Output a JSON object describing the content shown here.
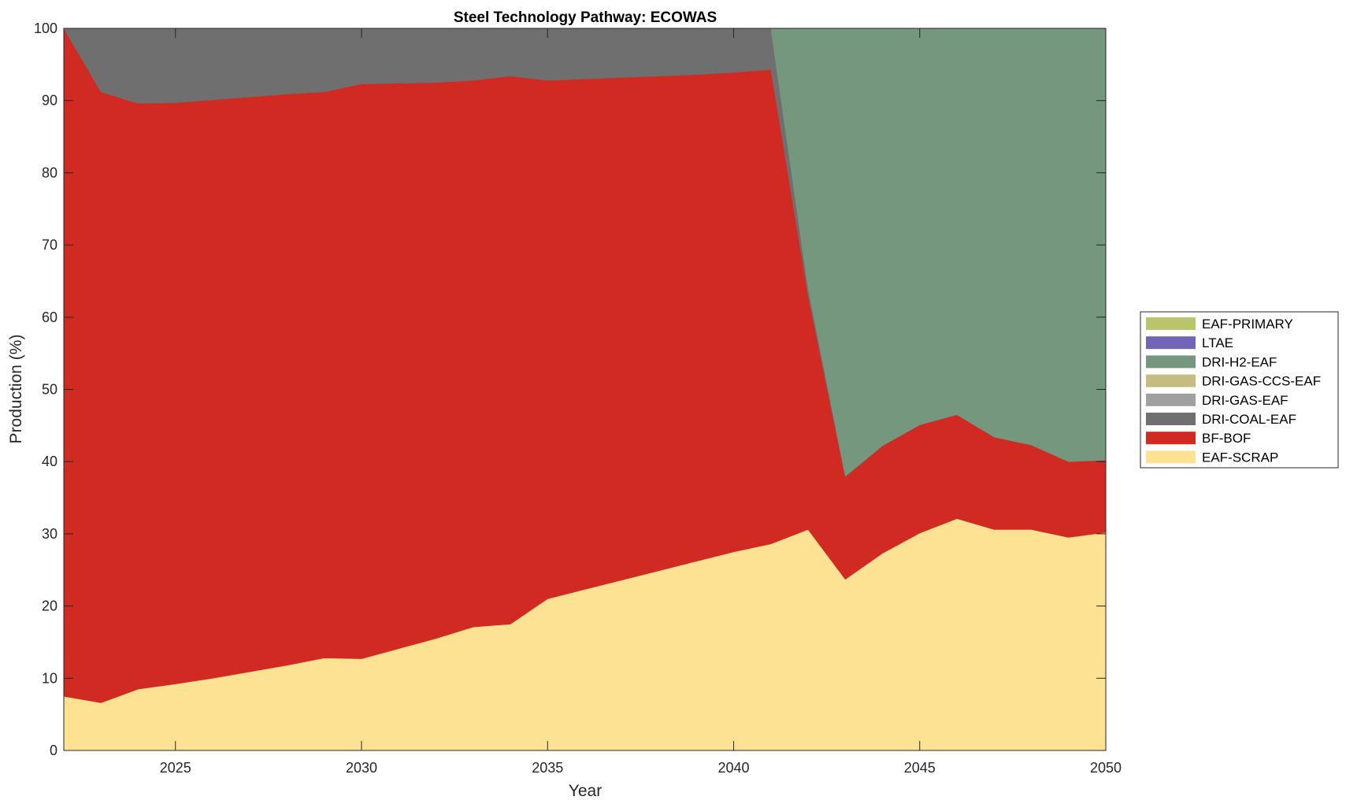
{
  "chart_data": {
    "type": "area",
    "title": "Steel Technology Pathway: ECOWAS",
    "xlabel": "Year",
    "ylabel": "Production (%)",
    "xlim": [
      2022,
      2050
    ],
    "ylim": [
      0,
      100
    ],
    "xticks": [
      2025,
      2030,
      2035,
      2040,
      2045,
      2050
    ],
    "yticks": [
      0,
      10,
      20,
      30,
      40,
      50,
      60,
      70,
      80,
      90,
      100
    ],
    "grid": false,
    "legend_position": "right",
    "x": [
      2022,
      2023,
      2024,
      2025,
      2026,
      2027,
      2028,
      2029,
      2030,
      2031,
      2032,
      2033,
      2034,
      2035,
      2036,
      2037,
      2038,
      2039,
      2040,
      2041,
      2042,
      2043,
      2044,
      2045,
      2046,
      2047,
      2048,
      2049,
      2050
    ],
    "series": [
      {
        "name": "EAF-SCRAP",
        "color": "#FDE293",
        "values": [
          7.5,
          6.6,
          8.5,
          9.2,
          10.0,
          10.9,
          11.8,
          12.8,
          12.7,
          14.1,
          15.5,
          17.1,
          17.5,
          21.0,
          22.3,
          23.6,
          24.9,
          26.2,
          27.5,
          28.6,
          30.6,
          23.7,
          27.3,
          30.1,
          32.1,
          30.6,
          30.6,
          29.5,
          30.2
        ]
      },
      {
        "name": "BF-BOF",
        "color": "#D12A23",
        "values": [
          92.5,
          84.6,
          81.1,
          80.5,
          80.1,
          79.6,
          79.1,
          78.4,
          79.6,
          78.3,
          77.0,
          75.7,
          75.9,
          71.8,
          70.7,
          69.6,
          68.5,
          67.4,
          66.4,
          65.7,
          32.4,
          14.2,
          14.9,
          15.0,
          14.4,
          12.8,
          11.7,
          10.5,
          10.0
        ]
      },
      {
        "name": "DRI-COAL-EAF",
        "color": "#6F6F6F",
        "values": [
          0,
          8.8,
          10.4,
          10.3,
          9.9,
          9.5,
          9.1,
          8.8,
          7.7,
          7.6,
          7.5,
          7.2,
          6.6,
          7.2,
          7.0,
          6.8,
          6.6,
          6.4,
          6.1,
          5.7,
          1.0,
          0.1,
          0,
          0,
          0,
          0,
          0,
          0,
          0
        ]
      },
      {
        "name": "DRI-GAS-EAF",
        "color": "#A0A0A0",
        "values": [
          0,
          0,
          0,
          0,
          0,
          0,
          0,
          0,
          0,
          0,
          0,
          0,
          0,
          0,
          0,
          0,
          0,
          0,
          0,
          0,
          0,
          0,
          0,
          0,
          0,
          0,
          0,
          0,
          0
        ]
      },
      {
        "name": "DRI-GAS-CCS-EAF",
        "color": "#C4BC80",
        "values": [
          0,
          0,
          0,
          0,
          0,
          0,
          0,
          0,
          0,
          0,
          0,
          0,
          0,
          0,
          0,
          0,
          0,
          0,
          0,
          0,
          0,
          0,
          0,
          0,
          0,
          0,
          0,
          0,
          0
        ]
      },
      {
        "name": "DRI-H2-EAF",
        "color": "#74977D",
        "values": [
          0,
          0,
          0,
          0,
          0,
          0,
          0,
          0,
          0,
          0,
          0,
          0,
          0,
          0,
          0,
          0,
          0,
          0,
          0,
          0,
          36.0,
          62.0,
          57.8,
          54.9,
          53.5,
          56.6,
          57.7,
          60.0,
          59.8
        ]
      },
      {
        "name": "LTAE",
        "color": "#7265B7",
        "values": [
          0,
          0,
          0,
          0,
          0,
          0,
          0,
          0,
          0,
          0,
          0,
          0,
          0,
          0,
          0,
          0,
          0,
          0,
          0,
          0,
          0,
          0,
          0,
          0,
          0,
          0,
          0,
          0,
          0
        ]
      },
      {
        "name": "EAF-PRIMARY",
        "color": "#BAC46A",
        "values": [
          0,
          0,
          0,
          0,
          0,
          0,
          0,
          0,
          0,
          0,
          0,
          0,
          0,
          0,
          0,
          0,
          0,
          0,
          0,
          0,
          0,
          0,
          0,
          0,
          0,
          0,
          0,
          0,
          0
        ]
      }
    ],
    "legend_order": [
      "EAF-PRIMARY",
      "LTAE",
      "DRI-H2-EAF",
      "DRI-GAS-CCS-EAF",
      "DRI-GAS-EAF",
      "DRI-COAL-EAF",
      "BF-BOF",
      "EAF-SCRAP"
    ]
  }
}
